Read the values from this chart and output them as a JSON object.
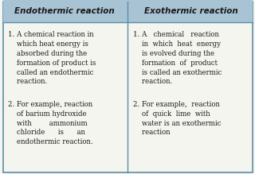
{
  "title_left": "Endothermic reaction",
  "title_right": "Exothermic reaction",
  "header_bg": "#a8c4d4",
  "header_text_color": "#1a1a1a",
  "body_bg": "#f5f5f0",
  "border_color": "#5a8fa8",
  "text_color": "#1a1a1a",
  "left_points": [
    "1. A chemical reaction in\n    which heat energy is\n    absorbed during the\n    formation of product is\n    called an endothermic\n    reaction.",
    "2. For example, reaction\n    of barium hydroxide\n    with        ammonium\n    chloride      is      an\n    endothermic reaction."
  ],
  "right_points": [
    "1. A   chemical   reaction\n    in  which  heat  energy\n    is evolved during the\n    formation  of  product\n    is called an exothermic\n    reaction.",
    "2. For example,  reaction\n    of  quick  lime  with\n    water is an exothermic\n    reaction"
  ],
  "header_fontsize": 7.5,
  "body_fontsize": 6.2,
  "fig_width": 3.2,
  "fig_height": 2.19,
  "dpi": 100
}
